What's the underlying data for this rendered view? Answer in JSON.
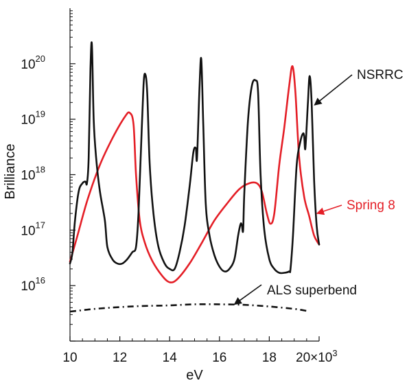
{
  "chart_data": {
    "type": "line",
    "title": "",
    "xlabel": "eV",
    "ylabel": "Brilliance",
    "x_scale": "linear",
    "y_scale": "log",
    "xlim": [
      10000,
      20000
    ],
    "ylim": [
      1000000000000000.0,
      1e+21
    ],
    "x_ticks": [
      10000,
      12000,
      14000,
      16000,
      18000,
      20000
    ],
    "x_tick_labels": [
      "10",
      "12",
      "14",
      "16",
      "18",
      "20×10³"
    ],
    "y_ticks": [
      1e+16,
      1e+17,
      1e+18,
      1e+19,
      1e+20
    ],
    "y_tick_labels": [
      {
        "base": "10",
        "exp": "16"
      },
      {
        "base": "10",
        "exp": "17"
      },
      {
        "base": "10",
        "exp": "18"
      },
      {
        "base": "10",
        "exp": "19"
      },
      {
        "base": "10",
        "exp": "20"
      }
    ],
    "grid": false,
    "legend": "none (inline annotations with arrows)",
    "series": [
      {
        "name": "NSRRC",
        "color": "#111111",
        "style": "solid",
        "points": [
          [
            10000,
            2.5e+16
          ],
          [
            10100,
            4e+16
          ],
          [
            10200,
            1.5e+17
          ],
          [
            10350,
            5e+17
          ],
          [
            10500,
            7e+17
          ],
          [
            10620,
            7.5e+17
          ],
          [
            10680,
            7e+17
          ],
          [
            10750,
            2e+18
          ],
          [
            10820,
            8e+19
          ],
          [
            10880,
            2.2e+20
          ],
          [
            10950,
            1e+19
          ],
          [
            11050,
            2e+18
          ],
          [
            11200,
            5e+17
          ],
          [
            11400,
            1.5e+17
          ],
          [
            11500,
            5e+16
          ],
          [
            11700,
            3e+16
          ],
          [
            11900,
            2.5e+16
          ],
          [
            12100,
            2.5e+16
          ],
          [
            12300,
            3e+16
          ],
          [
            12500,
            4e+16
          ],
          [
            12650,
            5e+16
          ],
          [
            12750,
            2e+17
          ],
          [
            12850,
            3e+18
          ],
          [
            12950,
            4e+19
          ],
          [
            13020,
            6.5e+19
          ],
          [
            13100,
            3e+19
          ],
          [
            13200,
            1.5e+18
          ],
          [
            13350,
            2e+17
          ],
          [
            13550,
            5e+16
          ],
          [
            13800,
            2.5e+16
          ],
          [
            14000,
            2e+16
          ],
          [
            14200,
            2e+16
          ],
          [
            14400,
            4e+16
          ],
          [
            14600,
            1.2e+17
          ],
          [
            14800,
            6e+17
          ],
          [
            14950,
            2.5e+18
          ],
          [
            15050,
            3e+18
          ],
          [
            15100,
            2e+18
          ],
          [
            15200,
            4e+19
          ],
          [
            15270,
            1.2e+20
          ],
          [
            15350,
            8e+18
          ],
          [
            15450,
            3e+17
          ],
          [
            15600,
            8e+16
          ],
          [
            15800,
            3.5e+16
          ],
          [
            16000,
            2.2e+16
          ],
          [
            16200,
            1.8e+16
          ],
          [
            16400,
            2e+16
          ],
          [
            16600,
            3e+16
          ],
          [
            16750,
            8e+16
          ],
          [
            16850,
            1.3e+17
          ],
          [
            16900,
            1.2e+17
          ],
          [
            16950,
            1e+17
          ],
          [
            17000,
            5e+17
          ],
          [
            17150,
            1e+19
          ],
          [
            17300,
            4e+19
          ],
          [
            17450,
            5e+19
          ],
          [
            17550,
            3e+19
          ],
          [
            17650,
            1e+18
          ],
          [
            17800,
            1e+17
          ],
          [
            18000,
            3e+16
          ],
          [
            18200,
            2e+16
          ],
          [
            18400,
            1.7e+16
          ],
          [
            18600,
            1.7e+16
          ],
          [
            18800,
            1.8e+16
          ],
          [
            18850,
            2e+16
          ],
          [
            18950,
            8e+16
          ],
          [
            19100,
            1.5e+18
          ],
          [
            19250,
            4e+18
          ],
          [
            19350,
            5.5e+18
          ],
          [
            19400,
            5e+18
          ],
          [
            19450,
            3e+18
          ],
          [
            19550,
            2e+19
          ],
          [
            19620,
            6e+19
          ],
          [
            19700,
            2e+19
          ],
          [
            19800,
            8e+17
          ],
          [
            19900,
            1.2e+17
          ],
          [
            20000,
            5.5e+16
          ]
        ]
      },
      {
        "name": "Spring 8",
        "color": "#e41e26",
        "style": "solid",
        "points": [
          [
            10000,
            2.7e+16
          ],
          [
            10300,
            8e+16
          ],
          [
            10700,
            3.5e+17
          ],
          [
            11200,
            1.5e+18
          ],
          [
            11700,
            4.5e+18
          ],
          [
            12200,
            1.1e+19
          ],
          [
            12400,
            1.3e+19
          ],
          [
            12550,
            8e+18
          ],
          [
            12650,
            1e+18
          ],
          [
            12800,
            1.5e+17
          ],
          [
            13000,
            6e+16
          ],
          [
            13300,
            2.8e+16
          ],
          [
            13700,
            1.5e+16
          ],
          [
            14000,
            1.15e+16
          ],
          [
            14300,
            1.3e+16
          ],
          [
            14800,
            2.5e+16
          ],
          [
            15300,
            6e+16
          ],
          [
            15800,
            1.5e+17
          ],
          [
            16300,
            3e+17
          ],
          [
            16800,
            5.5e+17
          ],
          [
            17200,
            7e+17
          ],
          [
            17500,
            7e+17
          ],
          [
            17700,
            5e+17
          ],
          [
            17900,
            2e+17
          ],
          [
            18050,
            1.3e+17
          ],
          [
            18200,
            2e+17
          ],
          [
            18400,
            1.5e+18
          ],
          [
            18600,
            7e+18
          ],
          [
            18800,
            4e+19
          ],
          [
            18930,
            9e+19
          ],
          [
            19050,
            3e+19
          ],
          [
            19200,
            2e+18
          ],
          [
            19400,
            4e+17
          ],
          [
            19600,
            1.8e+17
          ],
          [
            19800,
            8e+16
          ],
          [
            20000,
            5.5e+16
          ]
        ]
      },
      {
        "name": "ALS superbend",
        "color": "#111111",
        "style": "dashdot",
        "points": [
          [
            10000,
            3400000000000000.0
          ],
          [
            11000,
            3800000000000000.0
          ],
          [
            12000,
            4100000000000000.0
          ],
          [
            13000,
            4300000000000000.0
          ],
          [
            14000,
            4400000000000000.0
          ],
          [
            15000,
            4600000000000000.0
          ],
          [
            16000,
            4600000000000000.0
          ],
          [
            17000,
            4500000000000000.0
          ],
          [
            18000,
            4200000000000000.0
          ],
          [
            19000,
            3800000000000000.0
          ],
          [
            19500,
            3500000000000000.0
          ]
        ]
      }
    ],
    "annotations": [
      {
        "text": "NSRRC",
        "color": "#111111",
        "target": [
          19650,
          1.8e+19
        ]
      },
      {
        "text": "Spring 8",
        "color": "#e41e26",
        "target": [
          19750,
          2e+17
        ]
      },
      {
        "text": "ALS superbend",
        "color": "#111111",
        "target": [
          16600,
          4600000000000000.0
        ]
      }
    ]
  }
}
